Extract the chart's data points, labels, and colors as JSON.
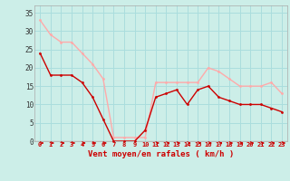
{
  "x": [
    0,
    1,
    2,
    3,
    4,
    5,
    6,
    7,
    8,
    9,
    10,
    11,
    12,
    13,
    14,
    15,
    16,
    17,
    18,
    19,
    20,
    21,
    22,
    23
  ],
  "wind_avg": [
    24,
    18,
    18,
    18,
    16,
    12,
    6,
    0,
    0,
    0,
    3,
    12,
    13,
    14,
    10,
    14,
    15,
    12,
    11,
    10,
    10,
    10,
    9,
    8
  ],
  "wind_gust": [
    33,
    29,
    27,
    27,
    24,
    21,
    17,
    1,
    1,
    1,
    1,
    16,
    16,
    16,
    16,
    16,
    20,
    19,
    17,
    15,
    15,
    15,
    16,
    13
  ],
  "avg_color": "#cc0000",
  "gust_color": "#ffaaaa",
  "bg_color": "#cceee8",
  "grid_color": "#aadddd",
  "xlabel": "Vent moyen/en rafales ( km/h )",
  "ylabel_ticks": [
    0,
    5,
    10,
    15,
    20,
    25,
    30,
    35
  ],
  "ylim": [
    0,
    37
  ],
  "xlim": [
    -0.5,
    23.5
  ],
  "arrow_xs_set1": [
    0,
    1,
    2,
    3,
    4,
    5,
    6
  ],
  "arrow_xs_set2": [
    11,
    12,
    13,
    14,
    15,
    16,
    17,
    18,
    19,
    20,
    21,
    22,
    23
  ]
}
